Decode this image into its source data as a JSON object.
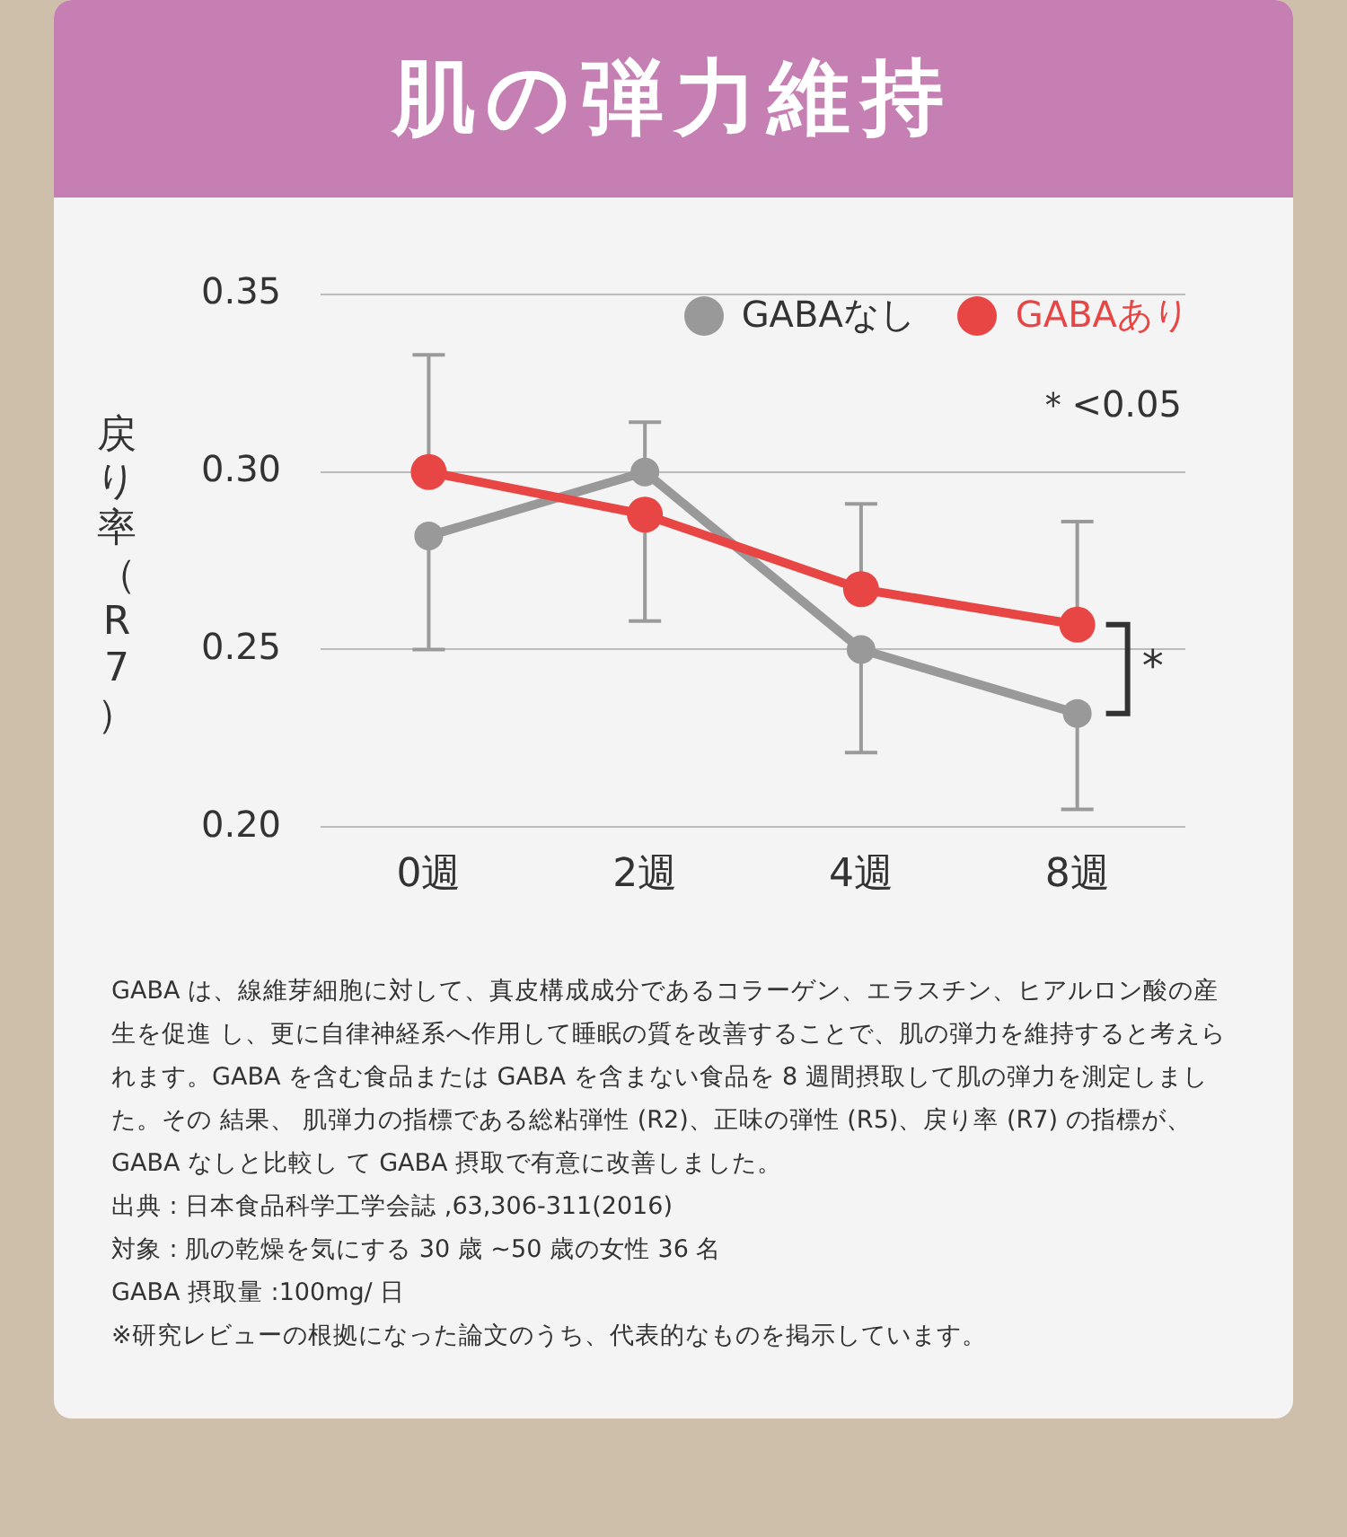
{
  "chart_data": {
    "type": "line",
    "title": "肌の弾力維持",
    "ylabel": "戻り率（R7）",
    "categories": [
      "0週",
      "2週",
      "4週",
      "8週"
    ],
    "series": [
      {
        "name": "GABAなし",
        "color": "#999999",
        "values": [
          0.282,
          0.3,
          0.25,
          0.232
        ],
        "errors": [
          [
            0.25,
            0.282
          ],
          [
            0.3,
            0.314
          ],
          [
            0.221,
            0.25
          ],
          [
            0.205,
            0.232
          ]
        ]
      },
      {
        "name": "GABAあり",
        "color": "#e84545",
        "values": [
          0.3,
          0.288,
          0.267,
          0.257
        ],
        "errors": [
          [
            0.3,
            0.333
          ],
          [
            0.258,
            0.288
          ],
          [
            0.267,
            0.291
          ],
          [
            0.257,
            0.286
          ]
        ]
      }
    ],
    "ylim": [
      0.2,
      0.35
    ],
    "yticks": [
      {
        "value": 0.2,
        "label": "0.20"
      },
      {
        "value": 0.25,
        "label": "0.25"
      },
      {
        "value": 0.3,
        "label": "0.30"
      },
      {
        "value": 0.35,
        "label": "0.35"
      }
    ],
    "grid": "y",
    "legend": "top right",
    "marker": "circle",
    "line_style": "solid",
    "annotations": [
      "＊<0.05",
      "*",
      "GABA は、線維芽細胞に対して、真皮構成成分であるコラーゲン、エラスチン、ヒアルロン酸の産生を促進 し、更に自律神経系へ作用して睡眠の質を改善することで、肌の弾力を維持すると考えられます。GABA を含む食品または GABA を含まない食品を 8 週間摂取して肌の弾力を測定しました。その 結果、 肌弾力の指標である総粘弾性 (R2)、正味の弾性 (R5)、戻り率 (R7) の指標が、GABA なしと比較し て GABA 摂取で有意に改善しました。",
      "出典 : 日本食品科学工学会誌 ,63,306-311(2016)",
      "対象 : 肌の乾燥を気にする 30 歳 ~50 歳の女性 36 名",
      "GABA 摂取量 :100mg/ 日",
      "※研究レビューの根拠になった論文のうち、代表的なものを掲示しています。"
    ]
  }
}
